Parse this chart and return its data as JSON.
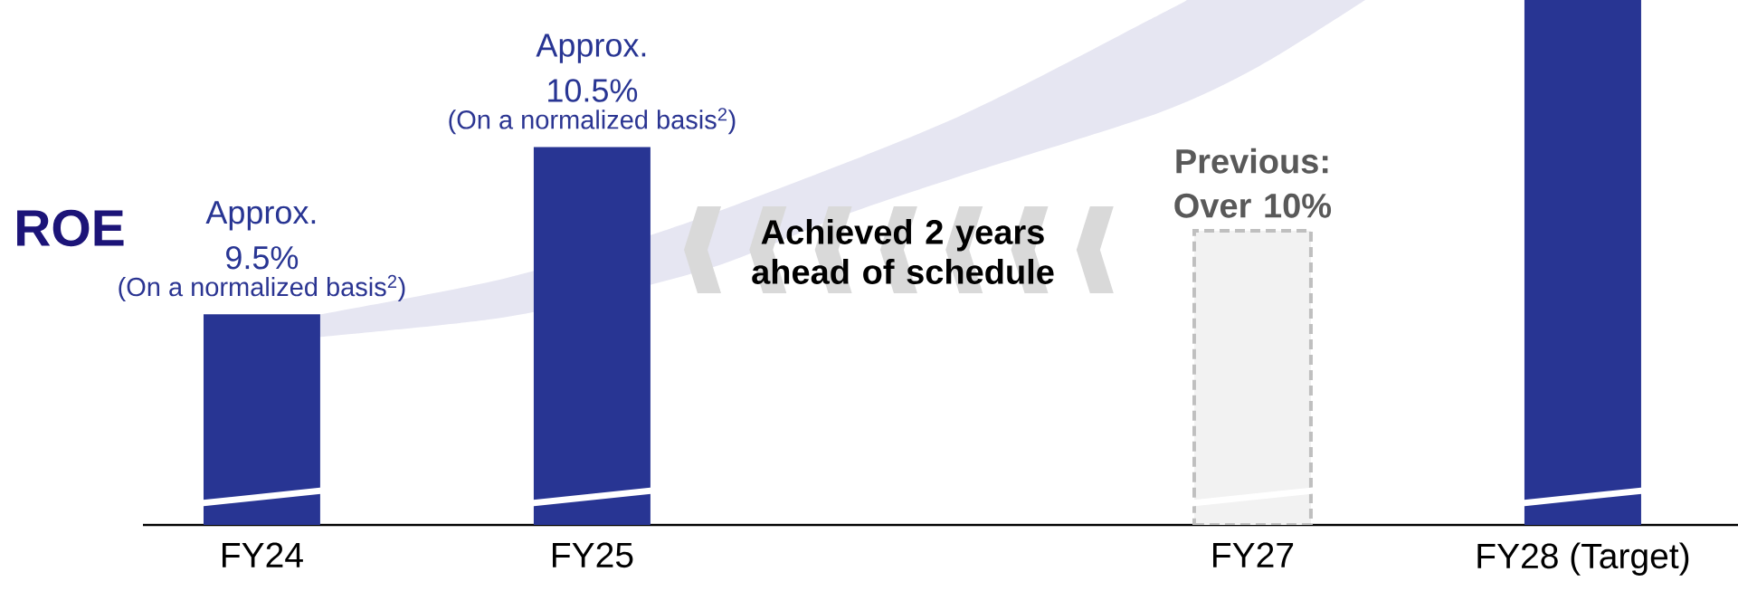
{
  "chart_data": {
    "type": "bar",
    "ylabel": "ROE",
    "categories": [
      "FY24",
      "FY25",
      null,
      "FY27",
      "FY28 (Target)"
    ],
    "ylim": [
      8.24,
      11.38
    ],
    "tick_labels": "x",
    "series": [
      {
        "color": "#283593",
        "values": [
          9.5,
          10.5,
          null,
          null,
          11.38
        ],
        "value_labels": [
          "Approx. 9.5%",
          "Approx. 10.5%",
          null,
          null,
          null
        ]
      },
      {
        "color": "#f2f2f2",
        "line_style": "dashed",
        "values": [
          null,
          null,
          null,
          10,
          null
        ],
        "value_labels": [
          null,
          null,
          null,
          "Previous: Over 10%",
          null
        ]
      }
    ],
    "annotations": [
      {
        "text": "(On a normalized basis$^{2}$)",
        "x": "FY24",
        "y": 9.5
      },
      {
        "text": "(On a normalized basis$^{2}$)",
        "x": "FY25",
        "y": 10.5
      },
      "Achieved 2 years ahead of schedule"
    ]
  }
}
